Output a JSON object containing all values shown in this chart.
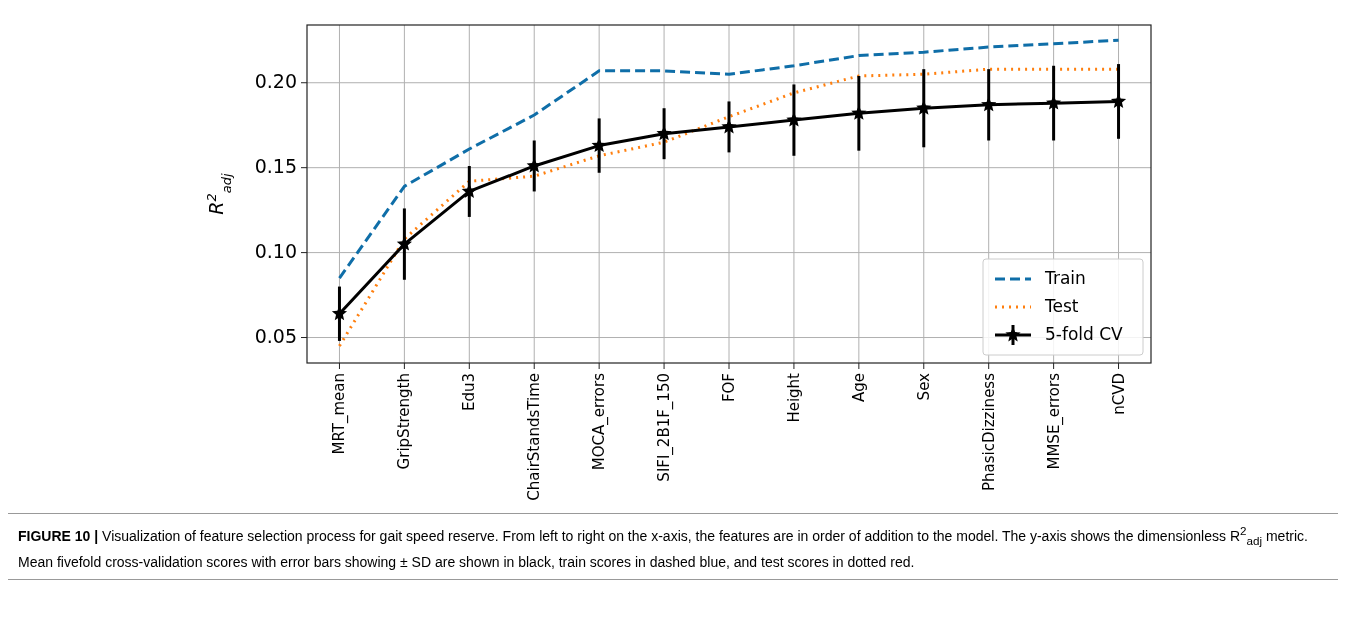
{
  "chart_data": {
    "type": "line",
    "ylabel": "R$^{2}$$_{adj}$",
    "categories": [
      "MRT_mean",
      "GripStrength",
      "Edu3",
      "ChairStandsTime",
      "MOCA_errors",
      "SIFI_2B1F_150",
      "FOF",
      "Height",
      "Age",
      "Sex",
      "PhasicDizziness",
      "MMSE_errors",
      "nCVD"
    ],
    "series": [
      {
        "name": "Train",
        "color": "#0f6ea8",
        "line_style": "dashed",
        "marker": "none",
        "values": [
          0.085,
          0.139,
          0.161,
          0.181,
          0.207,
          0.207,
          0.205,
          0.21,
          0.216,
          0.218,
          0.221,
          0.223,
          0.225
        ]
      },
      {
        "name": "Test",
        "color": "#ff7f0e",
        "line_style": "dotted",
        "marker": "none",
        "values": [
          0.045,
          0.108,
          0.142,
          0.145,
          0.157,
          0.165,
          0.18,
          0.194,
          0.204,
          0.205,
          0.208,
          0.208,
          0.208
        ]
      },
      {
        "name": "5-fold CV",
        "color": "#000000",
        "line_style": "solid",
        "marker": "star",
        "values": [
          0.064,
          0.105,
          0.136,
          0.151,
          0.163,
          0.17,
          0.174,
          0.178,
          0.182,
          0.185,
          0.187,
          0.188,
          0.189
        ],
        "errors": [
          0.016,
          0.021,
          0.015,
          0.015,
          0.016,
          0.015,
          0.015,
          0.021,
          0.022,
          0.023,
          0.021,
          0.022,
          0.022
        ]
      }
    ],
    "ylim": [
      0.035,
      0.234
    ],
    "yticks": [
      {
        "value": 0.05,
        "label": "0.05"
      },
      {
        "value": 0.1,
        "label": "0.10"
      },
      {
        "value": 0.15,
        "label": "0.15"
      },
      {
        "value": 0.2,
        "label": "0.20"
      }
    ],
    "grid": true,
    "legend": "lower right",
    "annotations": [
      "FIGURE 10 | Visualization of feature selection process for gait speed reserve. From left to right on the x-axis, the features are in order of addition to the model. The y-axis shows the dimensionless R$^{2}$$_{adj}$ metric. Mean fivefold cross-validation scores with error bars showing ± SD are shown in black, train scores in dashed blue, and test scores in dotted red."
    ]
  }
}
